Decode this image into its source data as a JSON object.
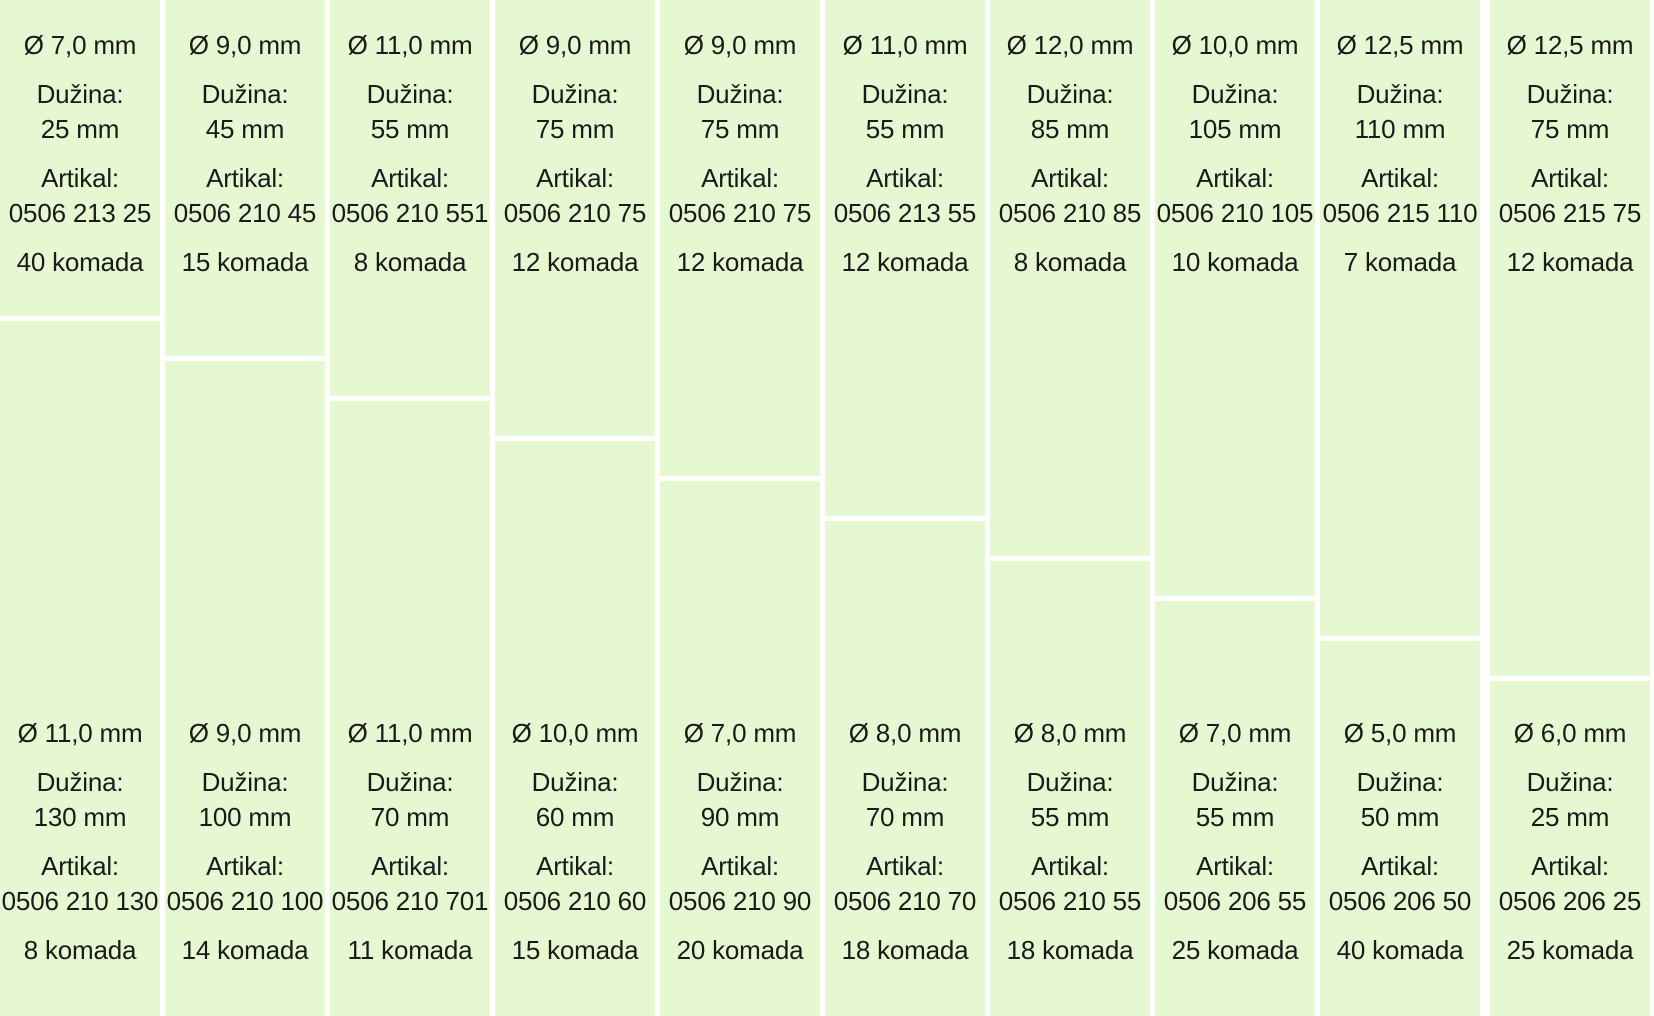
{
  "columns": [
    {
      "top": {
        "diameter": "Ø 7,0 mm",
        "length_label": "Dužina:",
        "length": "25 mm",
        "article_label": "Artikal:",
        "article": "0506 213 25",
        "qty": "40 komada"
      },
      "bottom": {
        "diameter": "Ø 11,0 mm",
        "length_label": "Dužina:",
        "length": "130 mm",
        "article_label": "Artikal:",
        "article": "0506 210 130",
        "qty": "8 komada"
      }
    },
    {
      "top": {
        "diameter": "Ø 9,0 mm",
        "length_label": "Dužina:",
        "length": "45 mm",
        "article_label": "Artikal:",
        "article": "0506 210 45",
        "qty": "15 komada"
      },
      "bottom": {
        "diameter": "Ø 9,0 mm",
        "length_label": "Dužina:",
        "length": "100 mm",
        "article_label": "Artikal:",
        "article": "0506 210 100",
        "qty": "14 komada"
      }
    },
    {
      "top": {
        "diameter": "Ø 11,0 mm",
        "length_label": "Dužina:",
        "length": "55 mm",
        "article_label": "Artikal:",
        "article": "0506 210 551",
        "qty": "8 komada"
      },
      "bottom": {
        "diameter": "Ø 11,0 mm",
        "length_label": "Dužina:",
        "length": "70 mm",
        "article_label": "Artikal:",
        "article": "0506 210 701",
        "qty": "11 komada"
      }
    },
    {
      "top": {
        "diameter": "Ø 9,0 mm",
        "length_label": "Dužina:",
        "length": "75 mm",
        "article_label": "Artikal:",
        "article": "0506 210 75",
        "qty": "12 komada"
      },
      "bottom": {
        "diameter": "Ø 10,0 mm",
        "length_label": "Dužina:",
        "length": "60 mm",
        "article_label": "Artikal:",
        "article": "0506 210 60",
        "qty": "15 komada"
      }
    },
    {
      "top": {
        "diameter": "Ø 9,0 mm",
        "length_label": "Dužina:",
        "length": "75 mm",
        "article_label": "Artikal:",
        "article": "0506 210 75",
        "qty": "12 komada"
      },
      "bottom": {
        "diameter": "Ø 7,0 mm",
        "length_label": "Dužina:",
        "length": "90 mm",
        "article_label": "Artikal:",
        "article": "0506 210 90",
        "qty": "20 komada"
      }
    },
    {
      "top": {
        "diameter": "Ø 11,0 mm",
        "length_label": "Dužina:",
        "length": "55 mm",
        "article_label": "Artikal:",
        "article": "0506 213 55",
        "qty": "12 komada"
      },
      "bottom": {
        "diameter": "Ø 8,0 mm",
        "length_label": "Dužina:",
        "length": "70 mm",
        "article_label": "Artikal:",
        "article": "0506 210 70",
        "qty": "18 komada"
      }
    },
    {
      "top": {
        "diameter": "Ø 12,0 mm",
        "length_label": "Dužina:",
        "length": "85 mm",
        "article_label": "Artikal:",
        "article": "0506 210 85",
        "qty": "8 komada"
      },
      "bottom": {
        "diameter": "Ø 8,0 mm",
        "length_label": "Dužina:",
        "length": "55 mm",
        "article_label": "Artikal:",
        "article": "0506 210 55",
        "qty": "18 komada"
      }
    },
    {
      "top": {
        "diameter": "Ø 10,0 mm",
        "length_label": "Dužina:",
        "length": "105 mm",
        "article_label": "Artikal:",
        "article": "0506 210 105",
        "qty": "10 komada"
      },
      "bottom": {
        "diameter": "Ø 7,0 mm",
        "length_label": "Dužina:",
        "length": "55 mm",
        "article_label": "Artikal:",
        "article": "0506 206 55",
        "qty": "25 komada"
      }
    },
    {
      "top": {
        "diameter": "Ø 12,5 mm",
        "length_label": "Dužina:",
        "length": "110 mm",
        "article_label": "Artikal:",
        "article": "0506 215 110",
        "qty": "7 komada"
      },
      "bottom": {
        "diameter": "Ø 5,0 mm",
        "length_label": "Dužina:",
        "length": "50 mm",
        "article_label": "Artikal:",
        "article": "0506 206 50",
        "qty": "40 komada"
      }
    },
    {
      "top": {
        "diameter": "Ø 12,5 mm",
        "length_label": "Dužina:",
        "length": "75 mm",
        "article_label": "Artikal:",
        "article": "0506 215 75",
        "qty": "12 komada"
      },
      "bottom": {
        "diameter": "Ø 6,0 mm",
        "length_label": "Dužina:",
        "length": "25 mm",
        "article_label": "Artikal:",
        "article": "0506 206 25",
        "qty": "25 komada"
      }
    }
  ]
}
